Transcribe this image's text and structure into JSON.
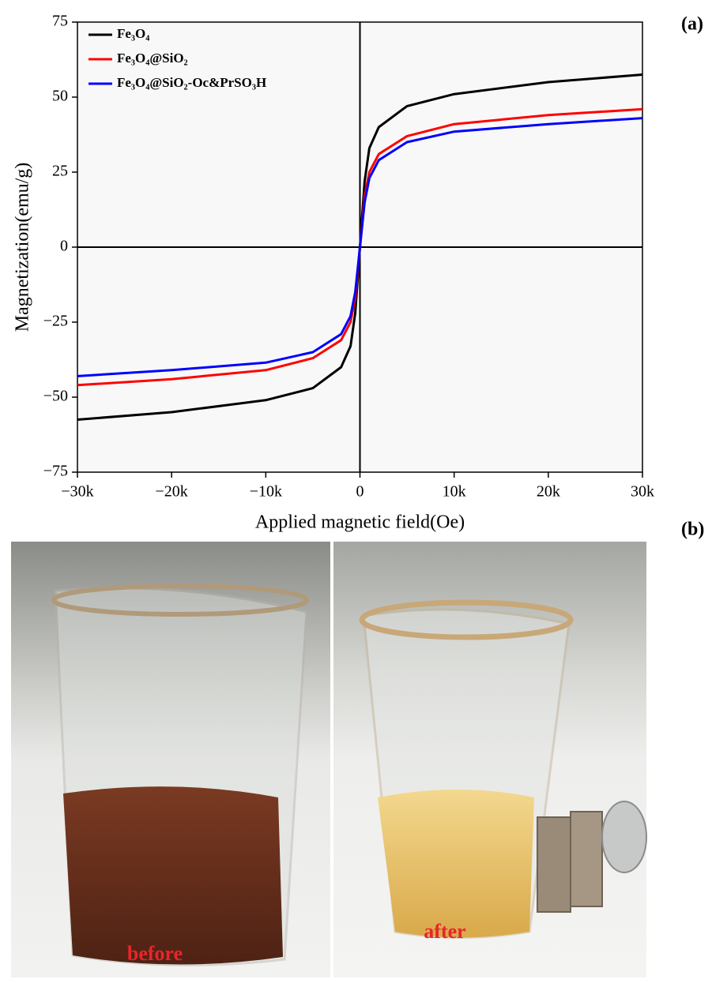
{
  "chart_data": {
    "type": "line",
    "xlabel": "Applied magnetic field(Oe)",
    "ylabel": "Magnetization(emu/g)",
    "x": [
      -30000,
      -20000,
      -10000,
      -5000,
      -2000,
      -1000,
      -500,
      0,
      500,
      1000,
      2000,
      5000,
      10000,
      20000,
      30000
    ],
    "series": [
      {
        "name": "Fe₃O₄",
        "color": "#000000",
        "values": [
          -57.5,
          -55,
          -51,
          -47,
          -40,
          -33,
          -22,
          0,
          22,
          33,
          40,
          47,
          51,
          55,
          57.5
        ]
      },
      {
        "name": "Fe₃O₄@SiO₂",
        "color": "#ff0000",
        "values": [
          -46,
          -44,
          -41,
          -37,
          -31,
          -25,
          -17,
          0,
          17,
          25,
          31,
          37,
          41,
          44,
          46
        ]
      },
      {
        "name": "Fe₃O₄@SiO₂-Oc&PrSO₃H",
        "color": "#0000ff",
        "values": [
          -43,
          -41,
          -38.5,
          -35,
          -29,
          -23,
          -15,
          0,
          15,
          23,
          29,
          35,
          38.5,
          41,
          43
        ]
      }
    ],
    "xlim": [
      -30000,
      30000
    ],
    "xticks": [
      {
        "value": -30000,
        "label": "−30k"
      },
      {
        "value": -20000,
        "label": "−20k"
      },
      {
        "value": -10000,
        "label": "−10k"
      },
      0,
      {
        "value": 10000,
        "label": "10k"
      },
      {
        "value": 20000,
        "label": "20k"
      },
      {
        "value": 30000,
        "label": "30k"
      }
    ],
    "ylim": [
      -75,
      75
    ],
    "yticks": [
      {
        "value": -75,
        "label": "−75"
      },
      {
        "value": -50,
        "label": "−50"
      },
      {
        "value": -25,
        "label": "−25"
      },
      0,
      25,
      50,
      75
    ],
    "legend": "upper left",
    "grid": false
  },
  "panels": {
    "a": "(a)",
    "b": "(b)",
    "before": "before",
    "after": "after"
  }
}
